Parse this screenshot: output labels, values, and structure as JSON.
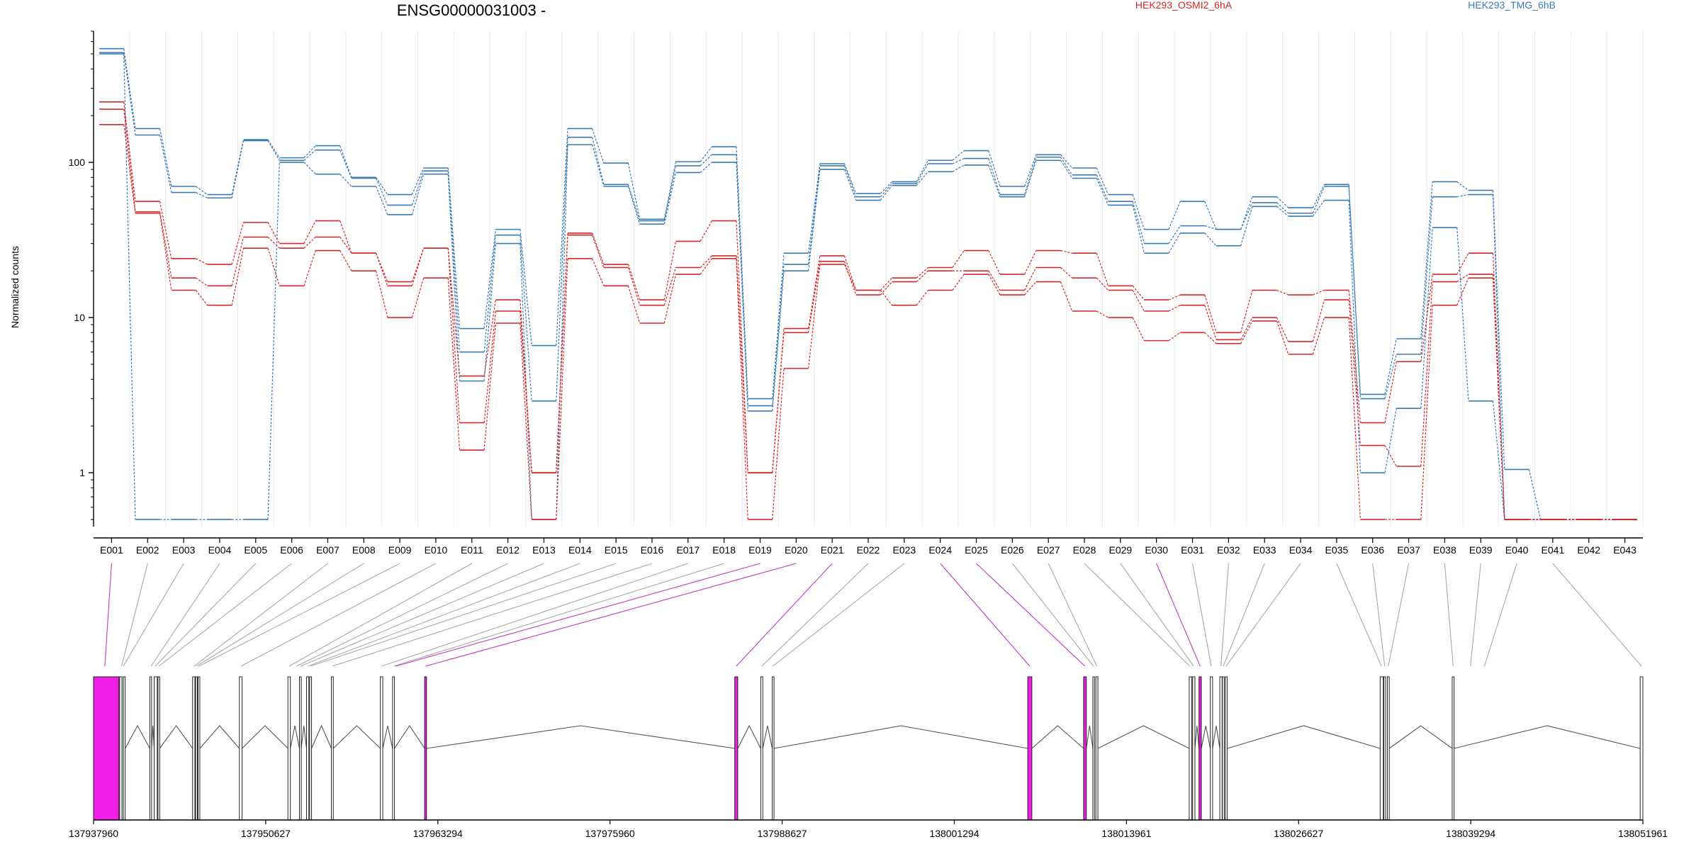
{
  "chart_data": {
    "type": "line",
    "title": "ENSG00000031003 -",
    "ylabel": "Normalized counts",
    "yscale": "log",
    "ylim": [
      0.45,
      700
    ],
    "yticks": [
      1,
      10,
      100
    ],
    "ytick_labels": [
      "1",
      "10",
      "100"
    ],
    "exons": [
      "E001",
      "E002",
      "E003",
      "E004",
      "E005",
      "E006",
      "E007",
      "E008",
      "E009",
      "E010",
      "E011",
      "E012",
      "E013",
      "E014",
      "E015",
      "E016",
      "E017",
      "E018",
      "E019",
      "E020",
      "E021",
      "E022",
      "E023",
      "E024",
      "E025",
      "E026",
      "E027",
      "E028",
      "E029",
      "E030",
      "E031",
      "E032",
      "E033",
      "E034",
      "E035",
      "E036",
      "E037",
      "E038",
      "E039",
      "E040",
      "E041",
      "E042",
      "E043"
    ],
    "legend": [
      {
        "name": "HEK293_OSMI2_6hA",
        "color": "#d62728"
      },
      {
        "name": "HEK293_TMG_6hB",
        "color": "#3a7ab5"
      }
    ],
    "series": [
      {
        "name": "HEK293_TMG_6hB",
        "color": "#3a7ab5",
        "values": [
          540,
          165,
          70,
          62,
          140,
          107,
          128,
          80,
          62,
          92,
          8.5,
          37,
          6.6,
          165,
          99,
          43,
          101,
          126,
          3.0,
          26,
          98,
          63,
          75,
          103,
          119,
          70,
          112,
          92,
          62,
          37,
          56,
          37,
          60,
          51,
          72,
          3.2,
          7.3,
          75,
          66,
          1.05,
          0.5,
          0.5,
          0.5
        ]
      },
      {
        "name": "HEK293_TMG_6hB",
        "color": "#3a7ab5",
        "values": [
          510,
          150,
          64,
          59,
          138,
          103,
          120,
          79,
          53,
          88,
          6.0,
          34,
          2.9,
          145,
          72,
          42,
          95,
          112,
          2.7,
          22,
          95,
          60,
          73,
          98,
          106,
          62,
          108,
          83,
          56,
          30,
          39,
          37,
          55,
          47,
          70,
          3.0,
          5.8,
          60,
          62,
          0.5,
          0.5,
          0.5,
          0.5
        ]
      },
      {
        "name": "HEK293_TMG_6hB",
        "color": "#3a7ab5",
        "values": [
          500,
          0.5,
          0.5,
          0.5,
          0.5,
          100,
          84,
          70,
          46,
          84,
          3.9,
          30,
          0.5,
          130,
          70,
          40,
          86,
          100,
          2.5,
          20,
          90,
          57,
          71,
          87,
          96,
          60,
          103,
          79,
          53,
          26,
          35,
          29,
          52,
          45,
          57,
          1.0,
          2.6,
          38,
          2.9,
          0.5,
          0.5,
          0.5,
          0.5
        ]
      },
      {
        "name": "HEK293_OSMI2_6hA",
        "color": "#d62728",
        "values": [
          245,
          56,
          24,
          22,
          41,
          30,
          42,
          26,
          17,
          28,
          4.2,
          13,
          1.0,
          35,
          22,
          13,
          31,
          42,
          1.0,
          8.5,
          25,
          15,
          18,
          21,
          27,
          19,
          27,
          26,
          16,
          13,
          14,
          8.0,
          15,
          14,
          15,
          2.1,
          5.2,
          19,
          26,
          0.5,
          0.5,
          0.5,
          0.5
        ]
      },
      {
        "name": "HEK293_OSMI2_6hA",
        "color": "#d62728",
        "values": [
          220,
          48,
          18,
          16,
          33,
          28,
          33,
          26,
          16,
          28,
          2.1,
          11,
          1.0,
          34,
          21,
          12,
          21,
          25,
          1.0,
          8.0,
          23,
          14,
          17,
          20,
          20,
          15,
          21,
          18,
          15,
          11,
          12,
          7.2,
          10,
          7.0,
          13,
          1.5,
          1.1,
          17,
          19,
          0.5,
          0.5,
          0.5,
          0.5
        ]
      },
      {
        "name": "HEK293_OSMI2_6hA",
        "color": "#d62728",
        "values": [
          175,
          47,
          15,
          12,
          28,
          16,
          27,
          20,
          10,
          18,
          1.4,
          9.2,
          0.5,
          24,
          16,
          9.2,
          19,
          24,
          0.5,
          4.7,
          22,
          15,
          12,
          15,
          19,
          14,
          17,
          11,
          10,
          7.1,
          8.0,
          6.8,
          9.5,
          5.8,
          10,
          0.5,
          0.5,
          12,
          18,
          0.5,
          0.5,
          0.5,
          0.5
        ]
      }
    ],
    "gene_axis": {
      "tick_labels": [
        "137937960",
        "137950627",
        "137963294",
        "137975960",
        "137988627",
        "138001294",
        "138013961",
        "138026627",
        "138039294",
        "138051961"
      ]
    },
    "exon_model": {
      "blocks": [
        {
          "start": 137937960,
          "end": 137939830,
          "highlight": true
        },
        {
          "start": 137939880,
          "end": 137940050
        },
        {
          "start": 137940150,
          "end": 137940290
        },
        {
          "start": 137942100,
          "end": 137942230
        },
        {
          "start": 137942420,
          "end": 137942650
        },
        {
          "start": 137942700,
          "end": 137942830
        },
        {
          "start": 137945250,
          "end": 137945420
        },
        {
          "start": 137945470,
          "end": 137945600
        },
        {
          "start": 137945650,
          "end": 137945780
        },
        {
          "start": 137948690,
          "end": 137948890
        },
        {
          "start": 137952260,
          "end": 137952440
        },
        {
          "start": 137953110,
          "end": 137953240
        },
        {
          "start": 137953630,
          "end": 137953800
        },
        {
          "start": 137953860,
          "end": 137954000
        },
        {
          "start": 137955460,
          "end": 137955600
        },
        {
          "start": 137959060,
          "end": 137959240
        },
        {
          "start": 137959960,
          "end": 137960100
        },
        {
          "start": 137962320,
          "end": 137962460,
          "highlight": true
        },
        {
          "start": 137985140,
          "end": 137985360,
          "highlight": true
        },
        {
          "start": 137987050,
          "end": 137987200
        },
        {
          "start": 137987900,
          "end": 137988030
        },
        {
          "start": 138006700,
          "end": 138007000,
          "highlight": true
        },
        {
          "start": 138010810,
          "end": 138011010,
          "highlight": true
        },
        {
          "start": 138011490,
          "end": 138011610
        },
        {
          "start": 138011710,
          "end": 138011860
        },
        {
          "start": 138018580,
          "end": 138018760
        },
        {
          "start": 138018830,
          "end": 138019000
        },
        {
          "start": 138019300,
          "end": 138019470,
          "highlight": true
        },
        {
          "start": 138020130,
          "end": 138020300
        },
        {
          "start": 138020830,
          "end": 138021000
        },
        {
          "start": 138021020,
          "end": 138021160
        },
        {
          "start": 138021240,
          "end": 138021380
        },
        {
          "start": 138032630,
          "end": 138032860
        },
        {
          "start": 138032900,
          "end": 138033030
        },
        {
          "start": 138033160,
          "end": 138033300
        },
        {
          "start": 138037930,
          "end": 138038070
        },
        {
          "start": 138051760,
          "end": 138051961
        }
      ],
      "exon_links": [
        {
          "start": 137938720,
          "end": 137938860,
          "highlight": true
        },
        {
          "start": 137940000,
          "end": 137940050
        },
        {
          "start": 137940100,
          "end": 137940200
        },
        {
          "start": 137942150,
          "end": 137942230
        },
        {
          "start": 137942430,
          "end": 137942560
        },
        {
          "start": 137942690,
          "end": 137942830
        },
        {
          "start": 137945300,
          "end": 137945420
        },
        {
          "start": 137945470,
          "end": 137945600
        },
        {
          "start": 137945650,
          "end": 137945780
        },
        {
          "start": 137948720,
          "end": 137948890
        },
        {
          "start": 137952250,
          "end": 137952440
        },
        {
          "start": 137952830,
          "end": 137952950
        },
        {
          "start": 137953140,
          "end": 137953240
        },
        {
          "start": 137953650,
          "end": 137953800
        },
        {
          "start": 137953860,
          "end": 137954000
        },
        {
          "start": 137955460,
          "end": 137955600
        },
        {
          "start": 137959060,
          "end": 137959240
        },
        {
          "start": 137959960,
          "end": 137960100
        },
        {
          "start": 137960120,
          "end": 137960260,
          "highlight": true
        },
        {
          "start": 137962300,
          "end": 137962460,
          "highlight": true
        },
        {
          "start": 137985140,
          "end": 137985360,
          "highlight": true
        },
        {
          "start": 137987050,
          "end": 137987200
        },
        {
          "start": 137987850,
          "end": 137988030
        },
        {
          "start": 138006700,
          "end": 138007000,
          "highlight": true
        },
        {
          "start": 138010800,
          "end": 138011010,
          "highlight": true
        },
        {
          "start": 138011460,
          "end": 138011610
        },
        {
          "start": 138011700,
          "end": 138011860
        },
        {
          "start": 138018500,
          "end": 138018760
        },
        {
          "start": 138018800,
          "end": 138019000
        },
        {
          "start": 138019300,
          "end": 138019470,
          "highlight": true
        },
        {
          "start": 138020100,
          "end": 138020300
        },
        {
          "start": 138020830,
          "end": 138021000
        },
        {
          "start": 138021020,
          "end": 138021160
        },
        {
          "start": 138021200,
          "end": 138021380
        },
        {
          "start": 138032600,
          "end": 138032860
        },
        {
          "start": 138032900,
          "end": 138033030
        },
        {
          "start": 138033160,
          "end": 138033300
        },
        {
          "start": 138037930,
          "end": 138038070
        },
        {
          "start": 138039200,
          "end": 138039350
        },
        {
          "start": 138040200,
          "end": 138040400
        },
        {
          "start": 138051760,
          "end": 138051961
        }
      ]
    },
    "colors": {
      "highlight": "#f01ee6",
      "link": "#a8a8a8",
      "link_highlight": "#c23bbf",
      "grid": "#e8e8ee"
    },
    "grid": true
  }
}
